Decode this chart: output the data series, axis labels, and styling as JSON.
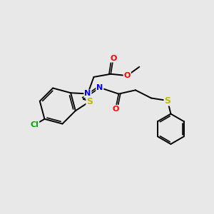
{
  "background_color": "#e8e8e8",
  "figsize": [
    3.0,
    3.0
  ],
  "dpi": 100,
  "bond_color": "#000000",
  "bond_width": 1.4,
  "font_size": 8.0,
  "atom_colors": {
    "N": "#0000ff",
    "O": "#ff0000",
    "S": "#bbbb00",
    "Cl": "#00aa00",
    "C": "#000000"
  }
}
